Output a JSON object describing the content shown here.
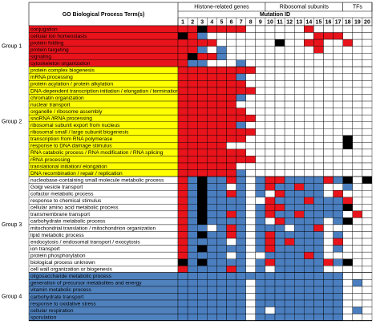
{
  "header": {
    "term_column": "GO Biological Process Term(s)",
    "mutation_id_label": "Mutation ID",
    "gene_classes": [
      {
        "label": "Histone-related genes",
        "mutation_ids": [
          1,
          2,
          3,
          4,
          5,
          6,
          7,
          8,
          9
        ]
      },
      {
        "label": "Ribosomal subunits",
        "mutation_ids": [
          10,
          11,
          12,
          13,
          14,
          15,
          16,
          17
        ]
      },
      {
        "label": "TFs",
        "mutation_ids": [
          18,
          19,
          20
        ]
      }
    ]
  },
  "cell_colors": {
    "R": "#e8131b",
    "B": "#4a7ebf",
    "K": "#000000",
    "W": "#ffffff"
  },
  "groups": [
    {
      "label": "Group 1",
      "color": "#e8131b",
      "text_color": "#ffffff",
      "terms": [
        {
          "term": "conjugation",
          "cells": "RRKRRRRWWWWWWRWWWWWW"
        },
        {
          "term": "cellular ion homeostasis",
          "cells": "KRBWWWWWWWWWWWRRRWWW"
        },
        {
          "term": "protein folding",
          "cells": "RRRRWWWWWWKWWRRWWRWW"
        },
        {
          "term": "protein targeting",
          "cells": "RRBWBWWWWWWWWWRWWWWW"
        },
        {
          "term": "signaling",
          "cells": "RKRRBWWWWWWWWWWWWWWW"
        },
        {
          "term": "cytoskeleton organization",
          "cells": "RBBWWWBWWWWWWWWWWWWW"
        }
      ]
    },
    {
      "label": "Group 2",
      "color": "#ffff00",
      "text_color": "#000000",
      "terms": [
        {
          "term": "protein complex biogenesis",
          "cells": "RRRRRRRRWWWWWWWWWWWW"
        },
        {
          "term": "mRNA processing",
          "cells": "RRRRRRBWWWWWWWWWWWWW"
        },
        {
          "term": "protein acylation / protein alkylation",
          "cells": "RRRRRRRWWWWWWWWWWWWW"
        },
        {
          "term": "DNA-dependent transcription initiation / elongation / termination",
          "cells": "RRRRRRRRWWWWWWWWWWWW"
        },
        {
          "term": "chromatin organization",
          "cells": "RRRRRRBWWWWWWWWWWWWW"
        },
        {
          "term": "nuclear transport",
          "cells": "RRRRRRWWWWWWWWWWWWWW"
        },
        {
          "term": "organelle / ribosome assembly",
          "cells": "RRRRRRRWWWWWWWWWWWWW"
        },
        {
          "term": "snoRNA /tRNA processing",
          "cells": "RRRRRRRRWWWWWWWWWWWW"
        },
        {
          "term": "ribosomal subunit export from nucleus",
          "cells": "RRRRRRBWWWWWWWWWWWWW"
        },
        {
          "term": "ribosomal small / large subunit biogenesis",
          "cells": "RRRRRRRRWWWWWWWWWWWW"
        },
        {
          "term": "transcription from RNA polymerase",
          "cells": "RRRRRRRWWWWWWWWWWKWW"
        },
        {
          "term": "response to DNA damage stimulus",
          "cells": "RRRRRWWWWWWWWWWWWKWW"
        },
        {
          "term": "RNA catabolic process / RNA modification /  RNA splicing",
          "cells": "RRRRRRRWWWWWWWWWWWWW"
        },
        {
          "term": "rRNA processing",
          "cells": "RRRRRRRRWWWWWWWWWWWW"
        },
        {
          "term": "translational initiation/ elongation",
          "cells": "RRRRRRWWWWWWWWWWWWWW"
        },
        {
          "term": "DNA recombination / repair / replication",
          "cells": "RRRRRRBWWWWWWWWWWWWW"
        }
      ]
    },
    {
      "label": "Group 3",
      "color": "#ffffff",
      "text_color": "#000000",
      "terms": [
        {
          "term": "nucleobase-containing small molecule metabolic process",
          "cells": "RBKBBRBWBRRBBBBRBKWK"
        },
        {
          "term": "Golgi vesicle transport",
          "cells": "RBKBBWBWBRBBRBBWWBWW"
        },
        {
          "term": "cofactor metabolic process",
          "cells": "RBKBBRBWBWRBBBBWRWWW"
        },
        {
          "term": "response to chemical stimulus",
          "cells": "RBKBBBBWWRBBBRBBBRWW"
        },
        {
          "term": "cellular amino acid metabolic process",
          "cells": "RBKBBBBWBRRBBBBBBKWW"
        },
        {
          "term": "transmembrane transport",
          "cells": "RBKBBRBWBRBBRBBBBWRW"
        },
        {
          "term": "carbohydrate metabolic process",
          "cells": "RBKBBBBWBWRBBBBWBKWW"
        },
        {
          "term": "mitochondrial translation  / mitochondrion organization",
          "cells": "RBBWBRBWBBBWBBRWWWWW"
        },
        {
          "term": "lipid metabolic process",
          "cells": "RBKBBRBWBRBBBBBWBWWW"
        },
        {
          "term": "endocytosis /  endosomal transport / exocytosis",
          "cells": "RBBBBWBWBRBRBBBWRWWW"
        },
        {
          "term": "ion transport",
          "cells": "RBKBBBBWBRBBBBBWBWWW"
        },
        {
          "term": "protein phosphorylation",
          "cells": "RBBBBWBWWBBBBRBWWWWW"
        },
        {
          "term": "biological process unknown",
          "cells": "KBKBBBBWBRBBBBBRBKWW"
        },
        {
          "term": "cell wall organization or biogenesis",
          "cells": "RBBBBRBWBWBBBBBWWWWW"
        }
      ]
    },
    {
      "label": "Group 4",
      "color": "#4f81bd",
      "text_color": "#ffffff",
      "terms": [
        {
          "term": "oligosaccharide metabolic process",
          "cells": "BBBBBBBBBBBBBBBBBWWW"
        },
        {
          "term": "generation of precursor metabolites and energy",
          "cells": "BBBBBBBWBBBBBBBBBWBW"
        },
        {
          "term": "vitamin metabolic process",
          "cells": "BBBBBBBWBBBBBBBBBWWW"
        },
        {
          "term": "carbohydrate transport",
          "cells": "BBBBBBBWBBBBBBBBBWWW"
        },
        {
          "term": "response to oxidative stress",
          "cells": "BBBBBBBWBBBBBBBBBWWW"
        },
        {
          "term": "cellular respiration",
          "cells": "BBBBBBBWBWBBBBBBBWBW"
        },
        {
          "term": "sporulation",
          "cells": "BBBBBBBWBBBBBBBBBWWW"
        }
      ]
    }
  ]
}
